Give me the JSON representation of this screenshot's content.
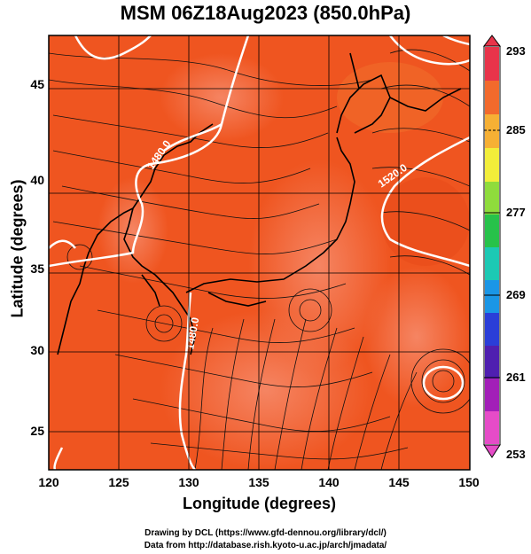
{
  "title": "MSM 06Z18Aug2023 (850.0hPa)",
  "xlabel": "Longitude (degrees)",
  "ylabel": "Latitude  (degrees)",
  "x_ticks": [
    "120",
    "125",
    "130",
    "135",
    "140",
    "145",
    "150"
  ],
  "y_ticks": [
    "25",
    "30",
    "35",
    "40",
    "45"
  ],
  "colorbar": {
    "ticks": [
      "293",
      "285",
      "277",
      "269",
      "261",
      "253"
    ],
    "colors": [
      "#e8344a",
      "#f26a2c",
      "#f6b034",
      "#f2ee3a",
      "#8fdc3c",
      "#27c24a",
      "#1cc9b4",
      "#1a96e6",
      "#2a3ed8",
      "#4f1fb0",
      "#a21fb8",
      "#e64cc8"
    ]
  },
  "contour_labels": {
    "a": "1480.0",
    "b": "1520.0",
    "c": "1480.0"
  },
  "credits": {
    "line1": "Drawing by DCL (https://www.gfd-dennou.org/library/dcl/)",
    "line2": "Data from http://database.rish.kyoto-u.ac.jp/arch/jmadata/"
  },
  "colors": {
    "field_base": "#f0561e",
    "field_warm": "#f37a52",
    "contour": "#ffffff",
    "coast": "#000000"
  }
}
